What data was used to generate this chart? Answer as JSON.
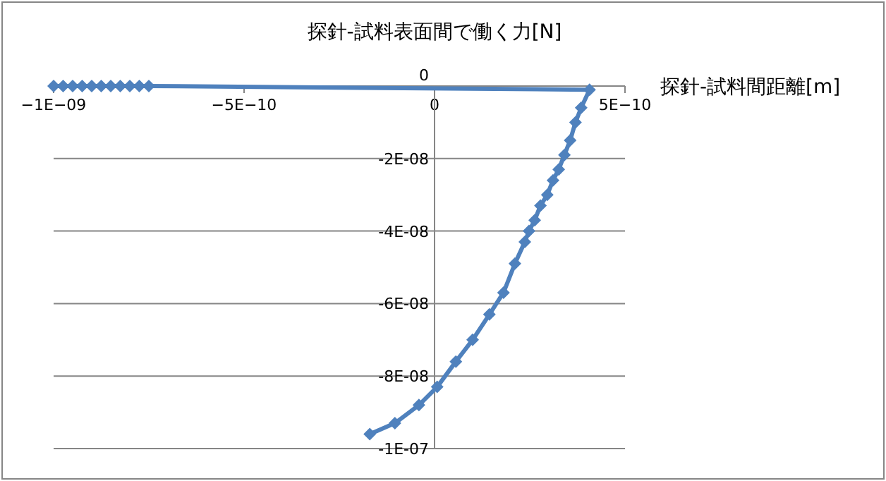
{
  "chart_data": {
    "type": "line",
    "title": "探針-試料表面間で働く力[N]",
    "xlabel": "探針-試料間距離[m]",
    "xlim": [
      -1e-09,
      5e-10
    ],
    "xticks": [
      {
        "value": -1e-09,
        "label": "−1E−09"
      },
      {
        "value": -5e-10,
        "label": "−5E−10"
      },
      0,
      {
        "value": 5e-10,
        "label": "5E−10"
      }
    ],
    "ylim": [
      -1e-07,
      0
    ],
    "yticks": [
      0,
      {
        "value": -2e-08,
        "label": "-2E-08"
      },
      {
        "value": -4e-08,
        "label": "-4E-08"
      },
      {
        "value": -6e-08,
        "label": "-6E-08"
      },
      {
        "value": -8e-08,
        "label": "-8E-08"
      },
      {
        "value": -1e-07,
        "label": "-1E-07"
      }
    ],
    "grid": "y",
    "marker": "diamond",
    "line_style": "solid",
    "series": [
      {
        "color": "#4f81bd",
        "x": [
          -1e-09,
          -9.75e-10,
          -9.5e-10,
          -9.25e-10,
          -9e-10,
          -8.75e-10,
          -8.5e-10,
          -8.25e-10,
          -8e-10,
          -7.75e-10,
          -7.5e-10,
          4.07e-10,
          3.85e-10,
          3.7e-10,
          3.56e-10,
          3.41e-10,
          3.26e-10,
          3.11e-10,
          2.96e-10,
          2.78e-10,
          2.63e-10,
          2.48e-10,
          2.37e-10,
          2.11e-10,
          1.81e-10,
          1.44e-10,
          1e-10,
          5.6e-11,
          7e-12,
          -4.1e-11,
          -1.04e-10,
          -1.7e-10
        ],
        "values": [
          0,
          0,
          0,
          0,
          0,
          0,
          0,
          0,
          0,
          0,
          0,
          -1e-09,
          -6e-09,
          -1e-08,
          -1.5e-08,
          -1.9e-08,
          -2.3e-08,
          -2.6e-08,
          -3e-08,
          -3.3e-08,
          -3.7e-08,
          -4e-08,
          -4.3e-08,
          -4.9e-08,
          -5.7e-08,
          -6.3e-08,
          -7e-08,
          -7.6e-08,
          -8.3e-08,
          -8.8e-08,
          -9.3e-08,
          -9.6e-08
        ]
      }
    ]
  }
}
